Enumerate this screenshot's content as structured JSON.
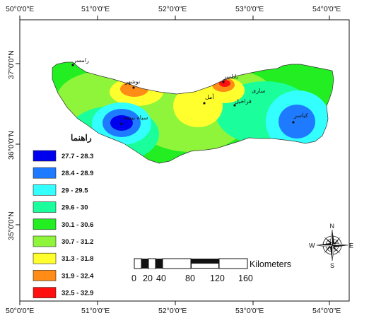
{
  "map": {
    "legend_title": "راهنما",
    "legend": [
      {
        "label": "27.7 - 28.3",
        "color": "#0000ee"
      },
      {
        "label": "28.4 - 28.9",
        "color": "#1e7bff"
      },
      {
        "label": "29 - 29.5",
        "color": "#33ffff"
      },
      {
        "label": "29.6 - 30",
        "color": "#1aff9c"
      },
      {
        "label": "30.1 - 30.6",
        "color": "#22ee22"
      },
      {
        "label": "30.7 - 31.2",
        "color": "#8ff53a"
      },
      {
        "label": "31.3 - 31.8",
        "color": "#ffff2e"
      },
      {
        "label": "31.9 - 32.4",
        "color": "#ff8c16"
      },
      {
        "label": "32.5 - 32.9",
        "color": "#ff1010"
      }
    ],
    "x_ticks": [
      "50°0'0\"E",
      "51°0'0\"E",
      "52°0'0\"E",
      "53°0'0\"E",
      "54°0'0\"E"
    ],
    "y_ticks": [
      "37°0'0\"N",
      "36°0'0\"N",
      "35°0'0\"N"
    ],
    "cities": [
      {
        "name": "رامسر"
      },
      {
        "name": "نوشهر"
      },
      {
        "name": "سیاه بیشه"
      },
      {
        "name": "بابلسر"
      },
      {
        "name": "آمل"
      },
      {
        "name": "ساری"
      },
      {
        "name": "قراخیل"
      },
      {
        "name": "کیاسر"
      }
    ],
    "scale": {
      "unit": "Kilometers",
      "labels": [
        "0",
        "20",
        "40",
        "80",
        "120",
        "160"
      ]
    },
    "compass": {
      "n": "N",
      "s": "S",
      "e": "E",
      "w": "W"
    }
  }
}
